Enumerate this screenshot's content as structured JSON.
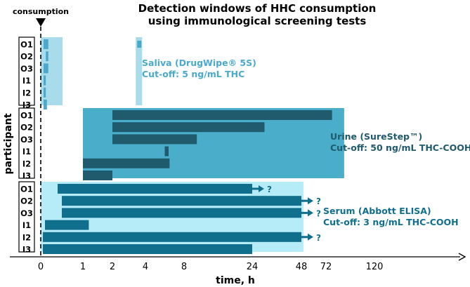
{
  "chart_data": {
    "type": "bar",
    "title": [
      "Detection windows of HHC consumption",
      "using immunological screening tests"
    ],
    "xlabel": "time, h",
    "ylabel": "participant",
    "event_label": "consumption",
    "x_ticks": [
      "0",
      "1",
      "2",
      "4",
      "8",
      "24",
      "48",
      "72",
      "120"
    ],
    "participants": [
      "O1",
      "O2",
      "O3",
      "I1",
      "I2",
      "I3"
    ],
    "panels": [
      {
        "name": "saliva",
        "test_label": "Saliva (DrugWipe® 5S)",
        "cutoff_label": "Cut-off: 5 ng/mL THC",
        "window_end_h": 0.25,
        "extra_window_h": [
          3.5,
          3.8
        ],
        "bars": [
          {
            "participant": "O1",
            "segments": [
              [
                0.05,
                0.22
              ]
            ]
          },
          {
            "participant": "O2",
            "segments": [
              [
                0.13,
                0.22
              ]
            ]
          },
          {
            "participant": "O3",
            "segments": [
              [
                0.05,
                0.22
              ]
            ]
          },
          {
            "participant": "I1",
            "segments": [
              [
                0.05,
                0.13
              ]
            ]
          },
          {
            "participant": "I2",
            "segments": [
              [
                0.05,
                0.13
              ]
            ]
          },
          {
            "participant": "I3",
            "segments": [
              [
                0.05,
                0.17
              ]
            ]
          }
        ],
        "extra_bars": [
          {
            "participant": "O1",
            "segments": [
              [
                3.5,
                3.75
              ]
            ]
          }
        ]
      },
      {
        "name": "urine",
        "test_label": "Urine (SureStep™)",
        "cutoff_label": "Cut-off: 50 ng/mL THC-COOH",
        "window_h": [
          1,
          90
        ],
        "bars": [
          {
            "participant": "O1",
            "segments": [
              [
                2,
                78
              ]
            ]
          },
          {
            "participant": "O2",
            "segments": [
              [
                2,
                30
              ]
            ]
          },
          {
            "participant": "O3",
            "segments": [
              [
                2,
                11
              ]
            ]
          },
          {
            "participant": "I1",
            "segments": [
              [
                6,
                6.4
              ]
            ]
          },
          {
            "participant": "I2",
            "segments": [
              [
                1,
                6.5
              ]
            ]
          },
          {
            "participant": "I3",
            "segments": [
              [
                1,
                2
              ]
            ]
          }
        ]
      },
      {
        "name": "serum",
        "test_label": "Serum (Abbott ELISA)",
        "cutoff_label": "Cut-off: 3 ng/mL THC-COOH",
        "window_h": [
          0,
          50
        ],
        "bars": [
          {
            "participant": "O1",
            "segments": [
              [
                0.4,
                24
              ]
            ],
            "arrow": true,
            "arrow_label": "?"
          },
          {
            "participant": "O2",
            "segments": [
              [
                0.5,
                48
              ]
            ],
            "arrow": true,
            "arrow_label": "?"
          },
          {
            "participant": "O3",
            "segments": [
              [
                0.5,
                48
              ]
            ],
            "arrow": true,
            "arrow_label": "?"
          },
          {
            "participant": "I1",
            "segments": [
              [
                0.1,
                1.2
              ]
            ]
          },
          {
            "participant": "I2",
            "segments": [
              [
                0.05,
                48
              ]
            ],
            "arrow": true,
            "arrow_label": "?"
          },
          {
            "participant": "I3",
            "segments": [
              [
                0.05,
                24
              ]
            ]
          }
        ]
      }
    ],
    "colors": {
      "saliva_band": "#a8dceb",
      "saliva_bar": "#4aa9cc",
      "saliva_text": "#4aa9cc",
      "urine_band": "#4aaecb",
      "urine_bar": "#1f5a6d",
      "urine_text": "#1f5a6d",
      "serum_band": "#b5ecf8",
      "serum_bar": "#0f6f8d",
      "serum_text": "#0f6f8d",
      "axis": "#000000"
    }
  }
}
